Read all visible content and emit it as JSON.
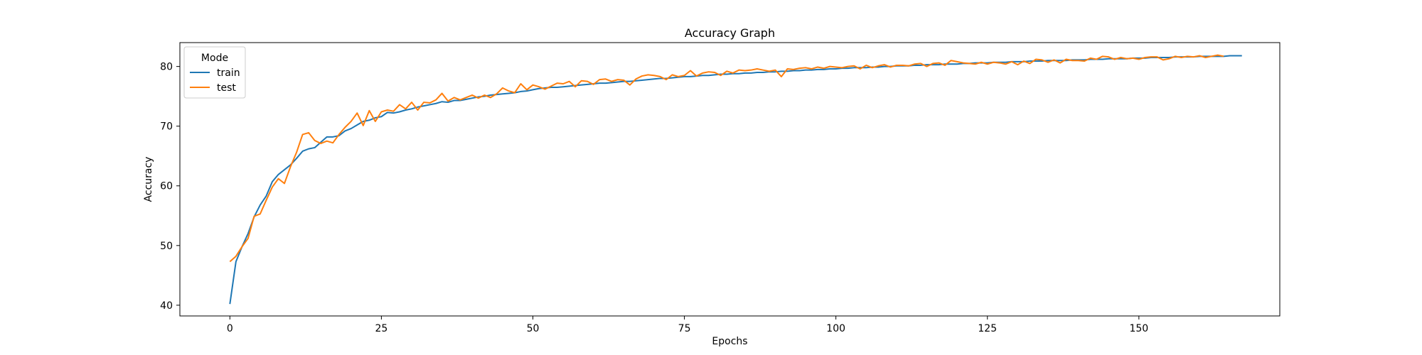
{
  "chart_data": {
    "type": "line",
    "title": "Accuracy Graph",
    "xlabel": "Epochs",
    "ylabel": "Accuracy",
    "xlim": [
      -8.25,
      173.25
    ],
    "ylim": [
      38.2,
      84.0
    ],
    "xticks": [
      0,
      25,
      50,
      75,
      100,
      125,
      150
    ],
    "yticks": [
      40,
      50,
      60,
      70,
      80
    ],
    "grid": false,
    "legend": {
      "title": "Mode",
      "placement": "top-left"
    },
    "series": [
      {
        "name": "train",
        "color": "#1f77b4",
        "values": [
          40.2,
          47.3,
          49.8,
          52.0,
          54.8,
          56.8,
          58.3,
          60.7,
          61.9,
          62.7,
          63.5,
          64.6,
          65.8,
          66.2,
          66.4,
          67.3,
          68.2,
          68.2,
          68.4,
          69.2,
          69.6,
          70.2,
          70.8,
          71.0,
          71.4,
          71.6,
          72.3,
          72.2,
          72.4,
          72.7,
          72.9,
          73.2,
          73.4,
          73.6,
          73.8,
          74.1,
          74.0,
          74.3,
          74.3,
          74.5,
          74.7,
          74.9,
          75.0,
          75.2,
          75.3,
          75.4,
          75.5,
          75.6,
          75.8,
          75.9,
          76.1,
          76.3,
          76.4,
          76.5,
          76.5,
          76.6,
          76.7,
          76.8,
          76.9,
          77.0,
          77.1,
          77.2,
          77.2,
          77.3,
          77.4,
          77.5,
          77.5,
          77.6,
          77.7,
          77.8,
          77.9,
          78.0,
          78.0,
          78.1,
          78.2,
          78.3,
          78.3,
          78.4,
          78.5,
          78.5,
          78.6,
          78.7,
          78.7,
          78.8,
          78.8,
          78.9,
          78.9,
          79.0,
          79.0,
          79.1,
          79.1,
          79.2,
          79.2,
          79.3,
          79.3,
          79.4,
          79.4,
          79.5,
          79.5,
          79.6,
          79.6,
          79.7,
          79.7,
          79.8,
          79.8,
          79.8,
          79.9,
          79.9,
          80.0,
          80.0,
          80.1,
          80.1,
          80.1,
          80.2,
          80.2,
          80.3,
          80.3,
          80.3,
          80.4,
          80.4,
          80.4,
          80.5,
          80.5,
          80.6,
          80.6,
          80.6,
          80.7,
          80.7,
          80.7,
          80.8,
          80.8,
          80.8,
          80.9,
          80.9,
          80.9,
          81.0,
          81.0,
          81.0,
          81.0,
          81.1,
          81.1,
          81.1,
          81.2,
          81.2,
          81.2,
          81.3,
          81.3,
          81.3,
          81.3,
          81.4,
          81.4,
          81.4,
          81.5,
          81.5,
          81.5,
          81.5,
          81.6,
          81.6,
          81.6,
          81.6,
          81.7,
          81.7,
          81.7,
          81.7,
          81.7,
          81.8,
          81.8,
          81.8
        ]
      },
      {
        "name": "test",
        "color": "#ff7f0e",
        "values": [
          47.3,
          48.2,
          49.8,
          51.2,
          54.9,
          55.3,
          57.6,
          59.8,
          61.2,
          60.4,
          63.2,
          65.6,
          68.6,
          68.9,
          67.6,
          67.1,
          67.5,
          67.2,
          68.6,
          69.8,
          70.8,
          72.2,
          70.1,
          72.6,
          70.8,
          72.4,
          72.7,
          72.5,
          73.6,
          72.9,
          74.0,
          72.7,
          74.0,
          73.9,
          74.4,
          75.5,
          74.2,
          74.8,
          74.4,
          74.8,
          75.2,
          74.7,
          75.2,
          74.8,
          75.4,
          76.4,
          75.9,
          75.6,
          77.1,
          76.1,
          76.9,
          76.6,
          76.2,
          76.7,
          77.2,
          77.1,
          77.5,
          76.6,
          77.6,
          77.5,
          77.0,
          77.8,
          77.9,
          77.5,
          77.8,
          77.7,
          76.9,
          77.9,
          78.4,
          78.6,
          78.5,
          78.3,
          77.8,
          78.6,
          78.3,
          78.5,
          79.3,
          78.4,
          78.9,
          79.1,
          79.0,
          78.5,
          79.2,
          78.9,
          79.4,
          79.3,
          79.4,
          79.6,
          79.4,
          79.2,
          79.4,
          78.3,
          79.6,
          79.5,
          79.7,
          79.8,
          79.6,
          79.9,
          79.7,
          80.0,
          79.9,
          79.8,
          80.0,
          80.1,
          79.6,
          80.2,
          79.8,
          80.1,
          80.3,
          79.9,
          80.2,
          80.2,
          80.1,
          80.4,
          80.5,
          80.0,
          80.5,
          80.6,
          80.2,
          81.0,
          80.8,
          80.6,
          80.5,
          80.4,
          80.7,
          80.4,
          80.7,
          80.6,
          80.4,
          80.8,
          80.3,
          80.9,
          80.5,
          81.2,
          81.1,
          80.7,
          81.1,
          80.6,
          81.2,
          81.0,
          81.0,
          80.9,
          81.4,
          81.2,
          81.7,
          81.6,
          81.2,
          81.5,
          81.3,
          81.4,
          81.2,
          81.5,
          81.6,
          81.6,
          81.1,
          81.3,
          81.7,
          81.5,
          81.7,
          81.6,
          81.8,
          81.5,
          81.7,
          81.9,
          81.7
        ]
      }
    ]
  }
}
